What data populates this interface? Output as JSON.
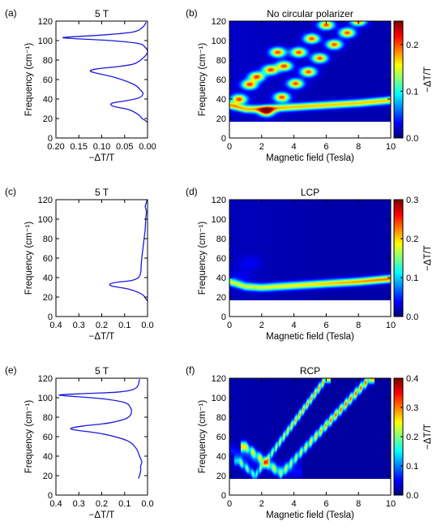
{
  "chart_data": [
    {
      "id": "a",
      "panel_label": "(a)",
      "type": "line",
      "title": "5 T",
      "xlabel": "−ΔT/T",
      "ylabel": "Frequency (cm⁻¹)",
      "xlim": [
        0.2,
        0.0
      ],
      "ylim": [
        0,
        120
      ],
      "xticks": [
        "0.20",
        "0.15",
        "0.10",
        "0.05",
        "0.00"
      ],
      "yticks": [
        "0",
        "20",
        "40",
        "60",
        "80",
        "100",
        "120"
      ],
      "line_color": "#1a1adb",
      "series": [
        {
          "x": [
            0.0,
            0.005,
            0.012,
            0.02,
            0.04,
            0.07,
            0.08,
            0.075,
            0.05,
            0.02,
            0.01,
            0.015,
            0.03,
            0.07,
            0.115,
            0.125,
            0.11,
            0.07,
            0.03,
            0.01,
            0.0,
            0.005,
            0.02,
            0.08,
            0.16,
            0.185,
            0.16,
            0.09,
            0.03,
            0.01,
            0.003
          ],
          "y": [
            16,
            18,
            20,
            24,
            29,
            32,
            34,
            36,
            38,
            41,
            45,
            49,
            55,
            62,
            67,
            69,
            71,
            73,
            76,
            82,
            88,
            93,
            97,
            100,
            102,
            103,
            104,
            106,
            109,
            114,
            119
          ]
        }
      ]
    },
    {
      "id": "b",
      "panel_label": "(b)",
      "type": "heatmap",
      "title": "No circular polarizer",
      "xlabel": "Magnetic field (Tesla)",
      "ylabel": "Frequency (cm⁻¹)",
      "xlim": [
        0,
        10
      ],
      "ylim": [
        0,
        120
      ],
      "data_ymin": 17,
      "xticks": [
        "0",
        "2",
        "4",
        "6",
        "8",
        "10"
      ],
      "yticks": [
        "0",
        "20",
        "40",
        "60",
        "80",
        "100",
        "120"
      ],
      "colorbar": {
        "label": "−ΔT/T",
        "min": 0.0,
        "max": 0.25,
        "ticks": [
          "0.0",
          "0.1",
          "0.2"
        ],
        "tick_values": [
          0.0,
          0.1,
          0.2
        ]
      },
      "features": [
        {
          "kind": "line",
          "points": [
            [
              0,
              34
            ],
            [
              1,
              30
            ],
            [
              2,
              30
            ],
            [
              4,
              32
            ],
            [
              6,
              34
            ],
            [
              8,
              36
            ],
            [
              10,
              39
            ]
          ],
          "amplitude": 0.16,
          "width": 2.5
        },
        {
          "kind": "dots",
          "points": [
            [
              0.6,
              40
            ],
            [
              1.25,
              55
            ],
            [
              1.7,
              63
            ],
            [
              2.3,
              27
            ],
            [
              2.55,
              70
            ],
            [
              3.0,
              88
            ],
            [
              3.25,
              42
            ],
            [
              3.4,
              74
            ],
            [
              4.1,
              56
            ],
            [
              4.3,
              88
            ],
            [
              4.9,
              68
            ],
            [
              5.1,
              102
            ],
            [
              5.6,
              82
            ],
            [
              6.0,
              116
            ],
            [
              6.5,
              96
            ],
            [
              7.3,
              108
            ],
            [
              8.0,
              120
            ]
          ],
          "amplitude": 0.19,
          "sx": 0.32,
          "sy": 3.2
        }
      ]
    },
    {
      "id": "c",
      "panel_label": "(c)",
      "type": "line",
      "title": "5 T",
      "xlabel": "−ΔT/T",
      "ylabel": "Frequency (cm⁻¹)",
      "xlim": [
        0.4,
        0.0
      ],
      "ylim": [
        0,
        120
      ],
      "xticks": [
        "0.4",
        "0.3",
        "0.2",
        "0.1",
        "0.0"
      ],
      "yticks": [
        "0",
        "20",
        "40",
        "60",
        "80",
        "100",
        "120"
      ],
      "line_color": "#1a1adb",
      "series": [
        {
          "x": [
            0.0,
            0.01,
            0.025,
            0.08,
            0.15,
            0.165,
            0.14,
            0.07,
            0.04,
            0.03,
            0.028,
            0.025,
            0.02,
            0.015,
            0.01,
            0.008,
            0.005,
            0.01,
            0.005,
            0.002
          ],
          "y": [
            16,
            19,
            23,
            28,
            31,
            33,
            35,
            37,
            40,
            45,
            52,
            60,
            70,
            80,
            90,
            100,
            108,
            113,
            117,
            120
          ]
        }
      ]
    },
    {
      "id": "d",
      "panel_label": "(d)",
      "type": "heatmap",
      "title": "LCP",
      "xlabel": "Magnetic field (Tesla)",
      "ylabel": "Frequency (cm⁻¹)",
      "xlim": [
        0,
        10
      ],
      "ylim": [
        0,
        120
      ],
      "data_ymin": 17,
      "xticks": [
        "0",
        "2",
        "4",
        "6",
        "8",
        "10"
      ],
      "yticks": [
        "0",
        "20",
        "40",
        "60",
        "80",
        "100",
        "120"
      ],
      "colorbar": {
        "label": "−ΔT/T",
        "min": 0.0,
        "max": 0.3,
        "ticks": [
          "0.0",
          "0.1",
          "0.2",
          "0.3"
        ],
        "tick_values": [
          0.0,
          0.1,
          0.2,
          0.3
        ]
      },
      "features": [
        {
          "kind": "line",
          "points": [
            [
              0,
              36
            ],
            [
              1,
              31
            ],
            [
              2,
              30
            ],
            [
              4,
              32
            ],
            [
              6,
              34
            ],
            [
              8,
              36
            ],
            [
              10,
              39
            ]
          ],
          "amplitude": 0.15,
          "width": 2.6,
          "grow": 0.07
        },
        {
          "kind": "dots",
          "points": [
            [
              0.6,
              40
            ],
            [
              1.3,
              55
            ]
          ],
          "amplitude": 0.02,
          "sx": 0.5,
          "sy": 5
        }
      ]
    },
    {
      "id": "e",
      "panel_label": "(e)",
      "type": "line",
      "title": "5 T",
      "xlabel": "−ΔT/T",
      "ylabel": "Frequency (cm⁻¹)",
      "xlim": [
        0.4,
        0.0
      ],
      "ylim": [
        0,
        120
      ],
      "xticks": [
        "0.4",
        "0.3",
        "0.2",
        "0.1",
        "0.0"
      ],
      "yticks": [
        "0",
        "20",
        "40",
        "60",
        "80",
        "100",
        "120"
      ],
      "line_color": "#1a1adb",
      "series": [
        {
          "x": [
            0.04,
            0.035,
            0.03,
            0.03,
            0.025,
            0.035,
            0.05,
            0.09,
            0.2,
            0.32,
            0.33,
            0.28,
            0.17,
            0.1,
            0.075,
            0.07,
            0.075,
            0.1,
            0.2,
            0.36,
            0.38,
            0.3,
            0.12,
            0.05,
            0.035
          ],
          "y": [
            17,
            20,
            25,
            30,
            34,
            40,
            48,
            56,
            63,
            67,
            69,
            71,
            74,
            78,
            82,
            86,
            90,
            95,
            99,
            102,
            103,
            104,
            106,
            110,
            119
          ]
        }
      ]
    },
    {
      "id": "f",
      "panel_label": "(f)",
      "type": "heatmap",
      "title": "RCP",
      "xlabel": "Magnetic field (Tesla)",
      "ylabel": "Frequency (cm⁻¹)",
      "xlim": [
        0,
        10
      ],
      "ylim": [
        0,
        120
      ],
      "data_ymin": 17,
      "xticks": [
        "0",
        "2",
        "4",
        "6",
        "8",
        "10"
      ],
      "yticks": [
        "0",
        "20",
        "40",
        "60",
        "80",
        "100",
        "120"
      ],
      "colorbar": {
        "label": "−ΔT/T",
        "min": 0.0,
        "max": 0.4,
        "ticks": [
          "0.0",
          "0.1",
          "0.2",
          "0.3",
          "0.4"
        ],
        "tick_values": [
          0.0,
          0.1,
          0.2,
          0.3,
          0.4
        ]
      },
      "features": [
        {
          "kind": "line",
          "points": [
            [
              0,
              46
            ],
            [
              1.5,
              36
            ],
            [
              3,
              28
            ],
            [
              4.5,
              24
            ]
          ],
          "amplitude": 0.04,
          "width": 5
        },
        {
          "kind": "beads",
          "points": [
            [
              0.6,
              35
            ],
            [
              1.6,
              20
            ],
            [
              6.0,
              120
            ]
          ],
          "amplitude": 0.3,
          "sx": 0.18,
          "sy": 2.2,
          "spacing": 5.5
        },
        {
          "kind": "beads",
          "points": [
            [
              1.0,
              50
            ],
            [
              3.2,
              22
            ],
            [
              8.7,
              120
            ]
          ],
          "amplitude": 0.32,
          "sx": 0.2,
          "sy": 2.4,
          "spacing": 5.5
        }
      ]
    }
  ]
}
